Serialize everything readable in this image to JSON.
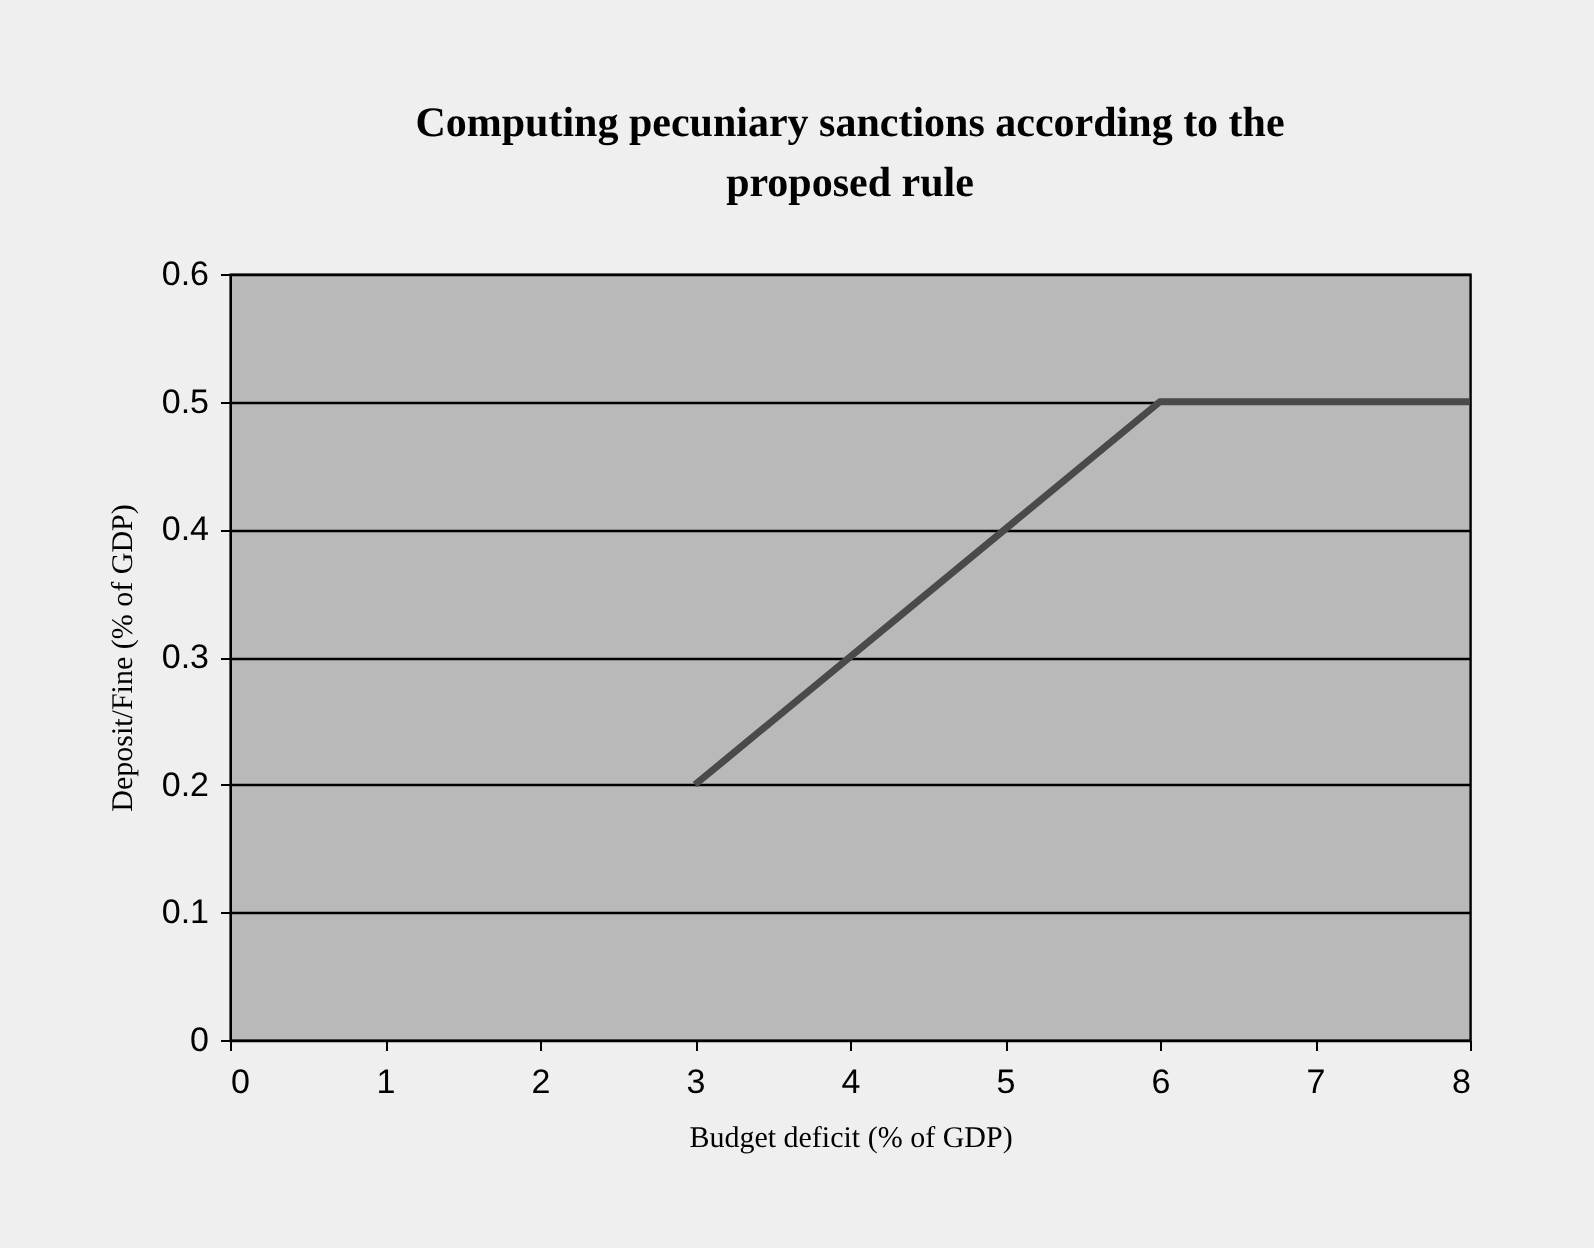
{
  "chart_data": {
    "type": "line",
    "title": "Computing pecuniary sanctions according to the proposed rule",
    "xlabel": "Budget deficit (% of GDP)",
    "ylabel": "Deposit/Fine (% of GDP)",
    "x": [
      3,
      6,
      8
    ],
    "series": [
      {
        "color": "#4a4a4a",
        "values": [
          0.2,
          0.5,
          0.5
        ]
      }
    ],
    "xlim": [
      0,
      8
    ],
    "xticks": [
      0,
      1,
      2,
      3,
      4,
      5,
      6,
      7,
      8
    ],
    "ylim": [
      0,
      0.6
    ],
    "yticks": [
      0,
      0.1,
      0.2,
      0.3,
      0.4,
      0.5,
      0.6
    ],
    "grid": "y",
    "marker": "none",
    "line_style": "solid"
  }
}
